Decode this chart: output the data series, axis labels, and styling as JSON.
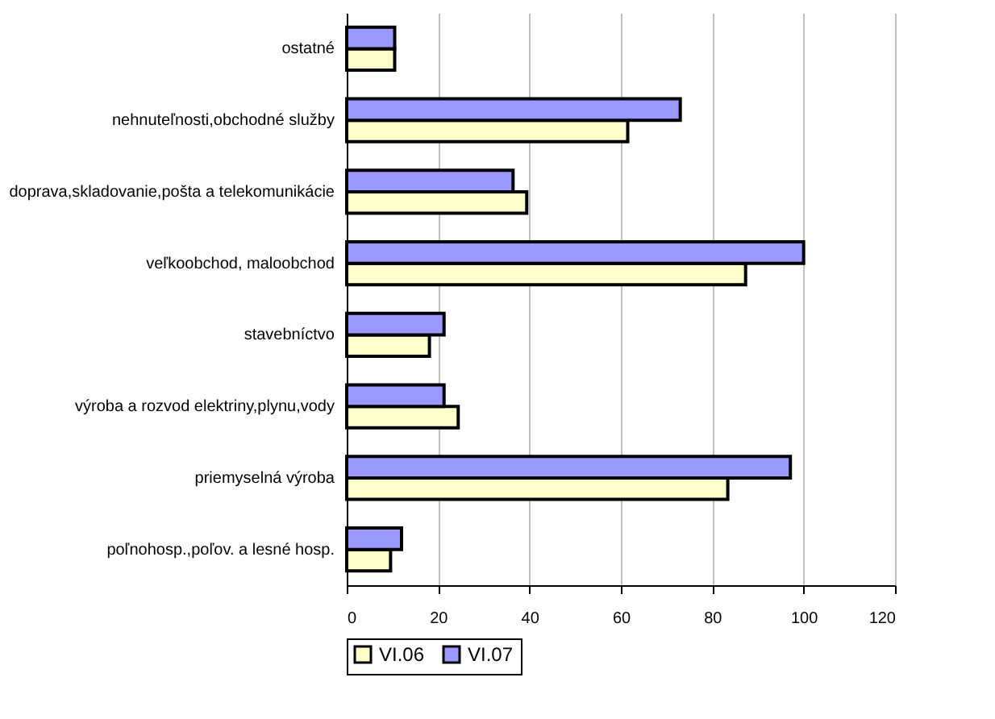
{
  "chart_data": {
    "type": "bar",
    "orientation": "horizontal",
    "categories": [
      "ostatné",
      "nehnuteľnosti,obchodné služby",
      "doprava,skladovanie,pošta a telekomunikácie",
      "veľkoobchod, maloobchod",
      "stavebníctvo",
      "výroba a rozvod elektriny,plynu,vody",
      "priemyselná výroba",
      "poľnohosp.,poľov. a lesné hosp."
    ],
    "series": [
      {
        "name": "VI.06",
        "color": "#ffffcc",
        "values": [
          10.5,
          61.5,
          39.4,
          87.3,
          18.1,
          24.4,
          83.4,
          9.6
        ]
      },
      {
        "name": "VI.07",
        "color": "#9999ff",
        "values": [
          10.5,
          73,
          36.4,
          100,
          21.3,
          21.3,
          97.1,
          12
        ]
      }
    ],
    "xlim": [
      0,
      120
    ],
    "xticks": [
      0,
      20,
      40,
      60,
      80,
      100,
      120
    ],
    "grid": "x",
    "legend": "bottom left"
  }
}
